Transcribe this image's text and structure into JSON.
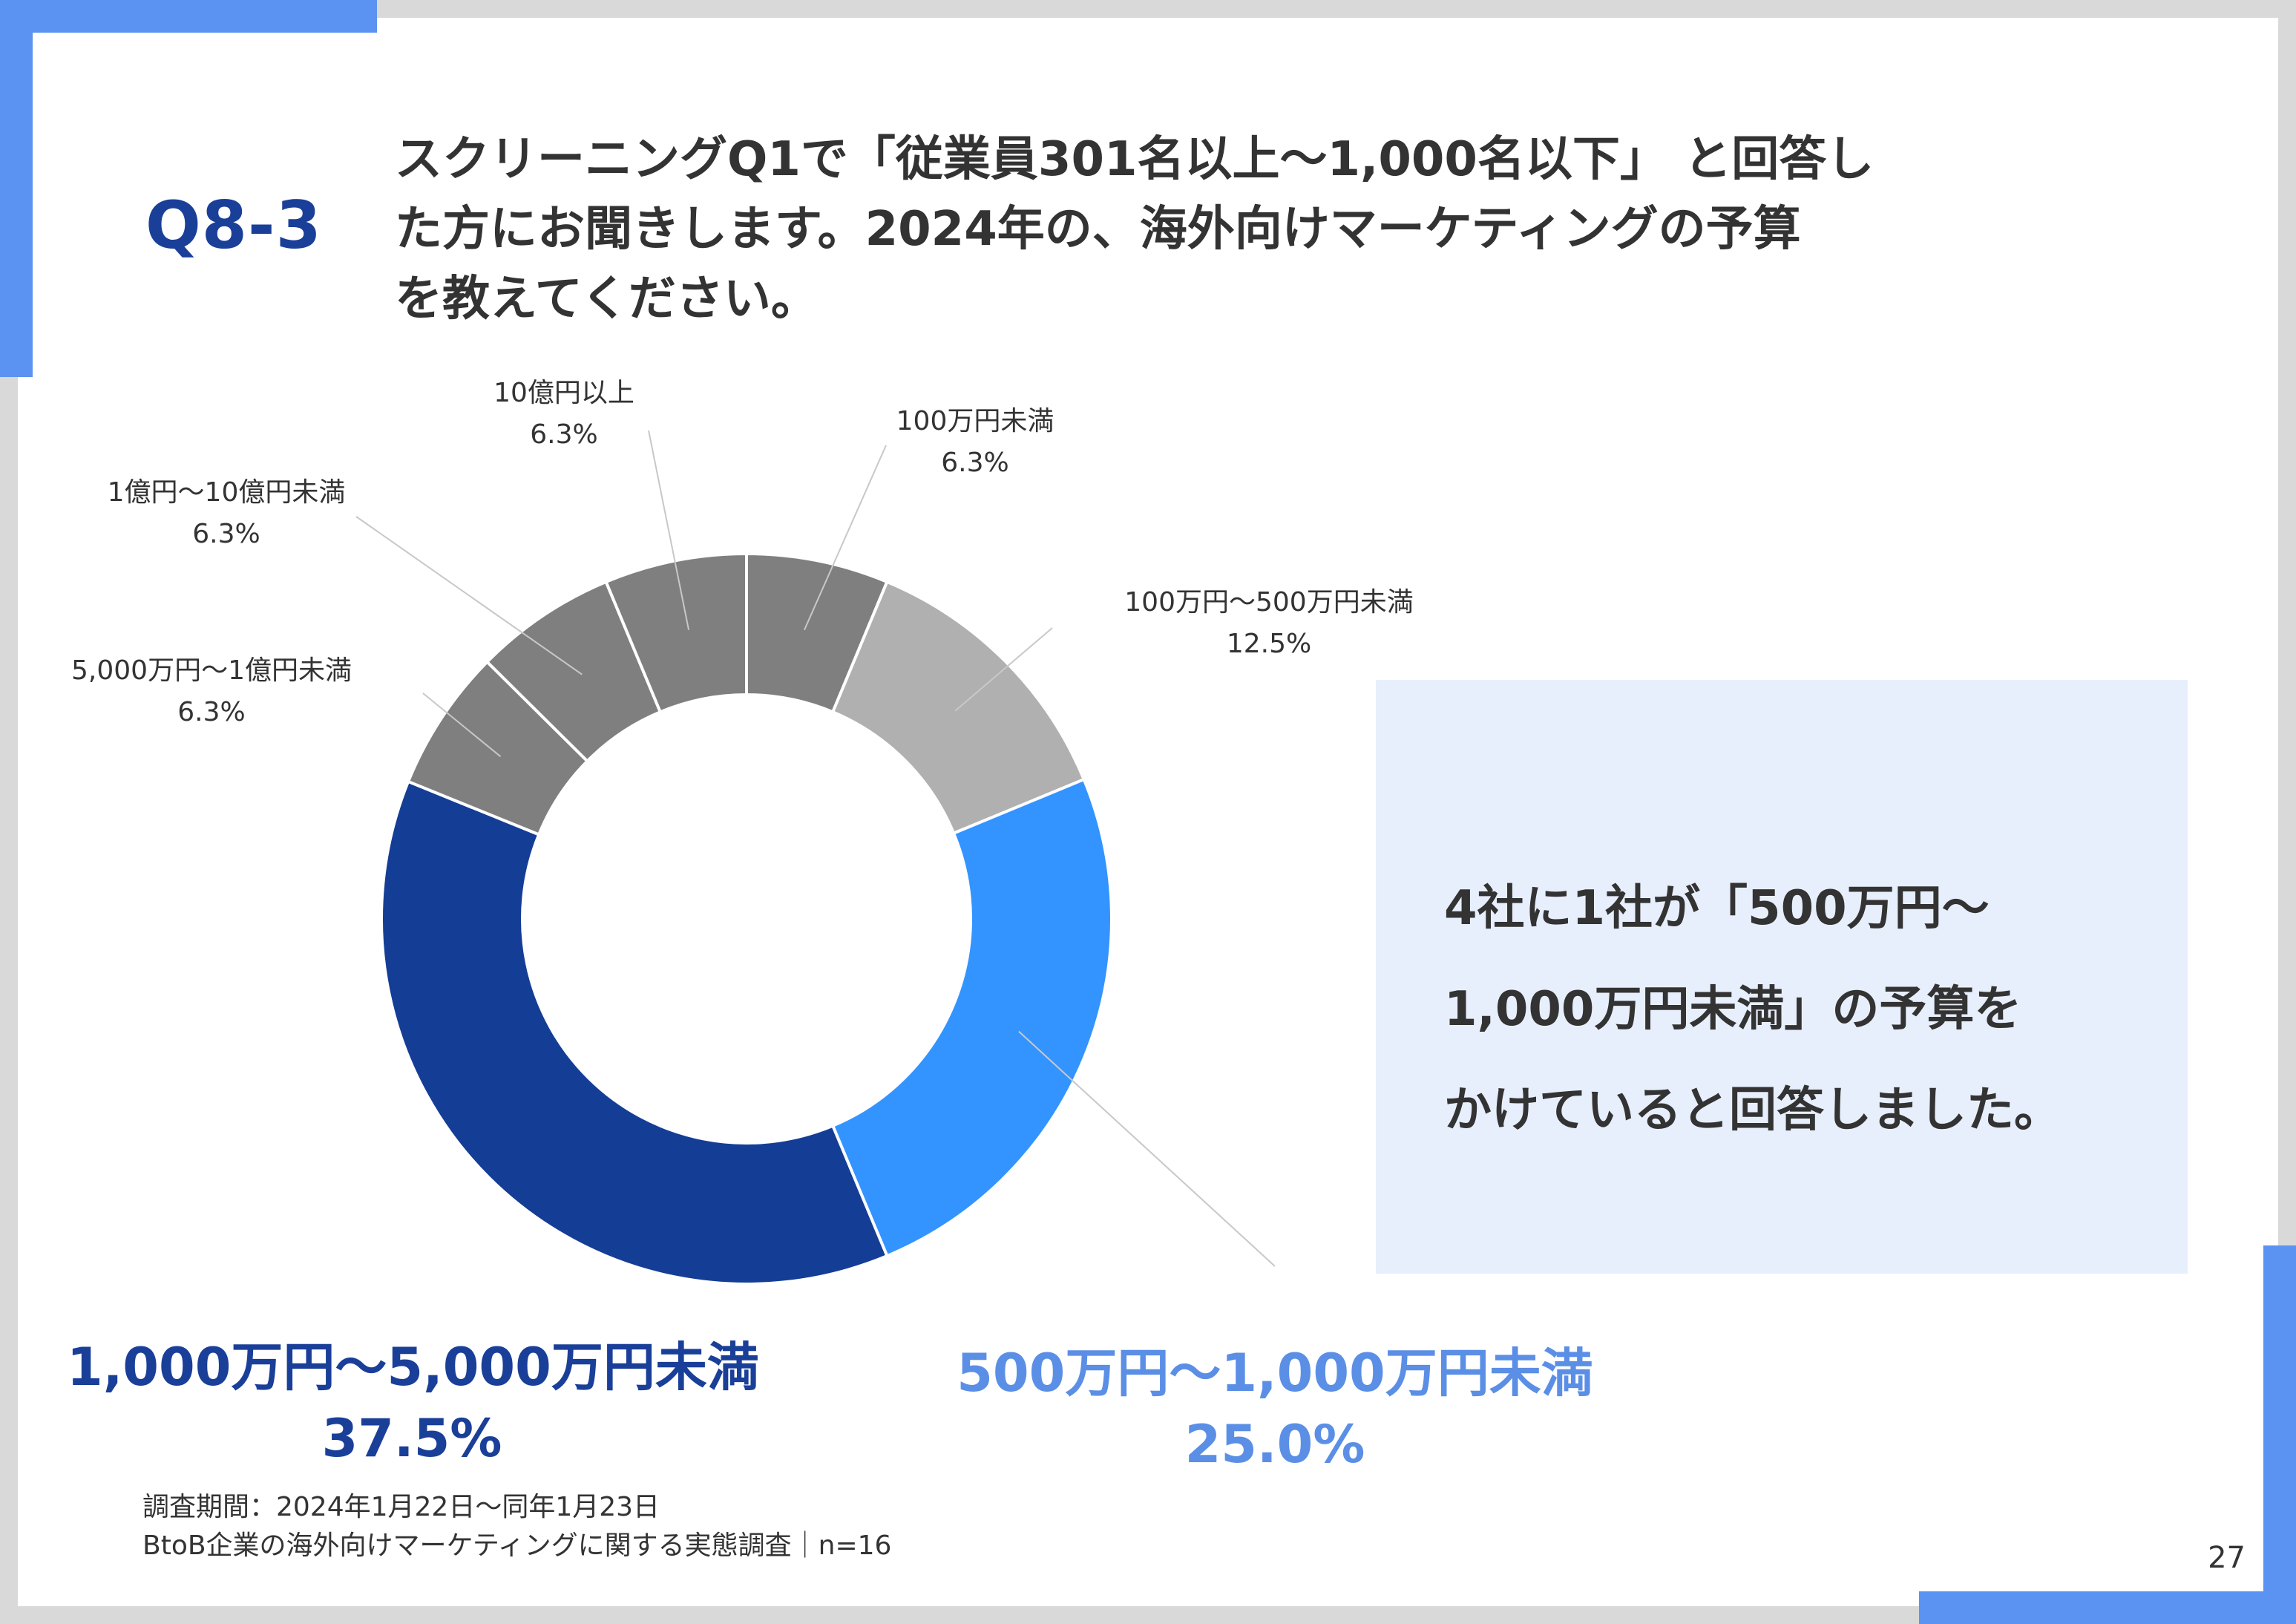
{
  "slide": {
    "question_number": "Q8-3",
    "question_lines": [
      "スクリーニングQ1で「従業員301名以上〜1,000名以下」 と回答し",
      "た方にお聞きします。2024年の、海外向けマーケティングの予算",
      "を教えてください。"
    ],
    "summary_lines": [
      "4社に1社が「500万円〜",
      "1,000万円未満」の予算を",
      "かけていると回答しました。"
    ],
    "footnote_lines": [
      "調査期間：2024年1月22日〜同年1月23日",
      "BtoB企業の海外向けマーケティングに関する実態調査｜n=16"
    ],
    "page_number": "27"
  },
  "chart_data": {
    "type": "pie",
    "donut": true,
    "title": "",
    "categories": [
      "100万円未満",
      "100万円〜500万円未満",
      "500万円〜1,000万円未満",
      "1,000万円〜5,000万円未満",
      "5,000万円〜1億円未満",
      "1億円〜10億円未満",
      "10億円以上"
    ],
    "values": [
      6.3,
      12.5,
      25.0,
      37.5,
      6.3,
      6.3,
      6.3
    ],
    "value_labels": [
      "6.3%",
      "12.5%",
      "25.0%",
      "37.5%",
      "6.3%",
      "6.3%",
      "6.3%"
    ],
    "colors": [
      "#7f7f7f",
      "#b0b0b0",
      "#3394ff",
      "#143d96",
      "#7f7f7f",
      "#7f7f7f",
      "#7f7f7f"
    ],
    "label_colors": [
      "#333333",
      "#333333",
      "#5b8fe6",
      "#1a3f99",
      "#333333",
      "#333333",
      "#333333"
    ],
    "start_angle_deg": 0,
    "direction": "clockwise"
  }
}
